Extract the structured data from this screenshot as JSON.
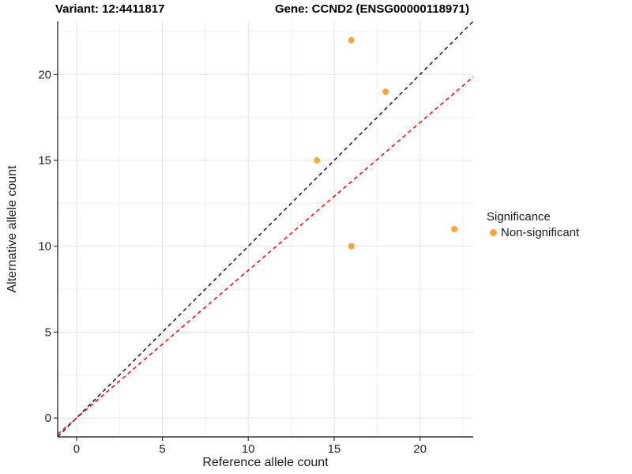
{
  "titles": {
    "left": "Variant: 12:4411817",
    "right": "Gene: CCND2 (ENSG00000118971)"
  },
  "legend": {
    "title": "Significance",
    "items": [
      {
        "label": "Non-significant",
        "color": "#FAA43A"
      }
    ]
  },
  "colors": {
    "point": "#FAA43A",
    "identity_line": "#1a1a1a",
    "ratio_line": "#FF0000",
    "grid_major": "#E3E3E3",
    "grid_minor": "#F0F0F0",
    "axis": "#333333",
    "tick_label": "#262626"
  },
  "chart_data": {
    "type": "scatter",
    "title_left": "Variant: 12:4411817",
    "title_right": "Gene: CCND2 (ENSG00000118971)",
    "xlabel": "Reference allele count",
    "ylabel": "Alternative allele count",
    "xlim": [
      -1.1,
      23.1
    ],
    "ylim": [
      -1.1,
      23.1
    ],
    "x_ticks": [
      0,
      5,
      10,
      15,
      20
    ],
    "y_ticks": [
      0,
      5,
      10,
      15,
      20
    ],
    "x_minor_ticks": [
      2.5,
      7.5,
      12.5,
      17.5,
      22.5
    ],
    "y_minor_ticks": [
      2.5,
      7.5,
      12.5,
      17.5,
      22.5
    ],
    "grid": true,
    "legend_position": "right",
    "series": [
      {
        "name": "Non-significant",
        "points": [
          {
            "x": 16,
            "y": 22
          },
          {
            "x": 18,
            "y": 19
          },
          {
            "x": 14,
            "y": 15
          },
          {
            "x": 16,
            "y": 10
          },
          {
            "x": 22,
            "y": 11
          }
        ]
      }
    ],
    "lines": [
      {
        "name": "identity-diagonal",
        "slope": 1.0,
        "intercept": 0,
        "style": "dashed"
      },
      {
        "name": "expected-ratio",
        "slope": 0.86,
        "intercept": 0,
        "style": "dashed"
      }
    ]
  }
}
